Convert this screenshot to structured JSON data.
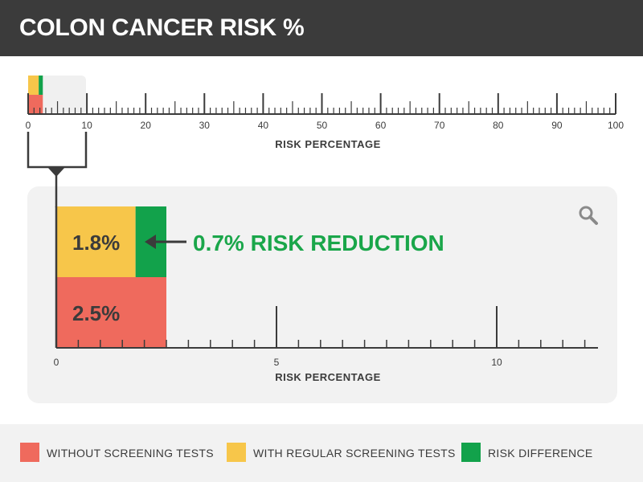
{
  "title": "COLON CANCER RISK %",
  "colors": {
    "without_screening": "#ef6a5d",
    "with_screening": "#f7c64a",
    "risk_difference": "#12a24b",
    "ink": "#3b3b3b",
    "header_bg": "#3b3b3b",
    "panel_bg": "#f2f2f2"
  },
  "chart_data": [
    {
      "type": "bar",
      "orientation": "horizontal",
      "stacked": true,
      "xlabel": "RISK PERCENTAGE",
      "xlim": [
        0,
        100
      ],
      "x_ticks": [
        0,
        10,
        20,
        30,
        40,
        50,
        60,
        70,
        80,
        90,
        100
      ],
      "series": [
        {
          "name": "WITHOUT SCREENING TESTS",
          "value": 2.5
        },
        {
          "name": "WITH REGULAR SCREENING TESTS",
          "value": 1.8
        },
        {
          "name": "RISK DIFFERENCE",
          "value": 0.7
        }
      ]
    },
    {
      "type": "bar",
      "orientation": "horizontal",
      "stacked": true,
      "xlabel": "RISK PERCENTAGE",
      "xlim": [
        0,
        12.5
      ],
      "x_ticks": [
        0,
        5,
        10
      ],
      "series": [
        {
          "name": "WITHOUT SCREENING TESTS",
          "value": 2.5,
          "label": "2.5%"
        },
        {
          "name": "WITH REGULAR SCREENING TESTS",
          "value": 1.8,
          "label": "1.8%"
        },
        {
          "name": "RISK DIFFERENCE",
          "value": 0.7
        }
      ],
      "annotation": "0.7% RISK REDUCTION"
    }
  ],
  "legend": [
    {
      "label": "WITHOUT SCREENING TESTS",
      "color": "#ef6a5d"
    },
    {
      "label": "WITH REGULAR SCREENING TESTS",
      "color": "#f7c64a"
    },
    {
      "label": "RISK DIFFERENCE",
      "color": "#12a24b"
    }
  ],
  "icons": {
    "zoom": "magnifier-icon",
    "arrow": "arrow-left-icon"
  }
}
